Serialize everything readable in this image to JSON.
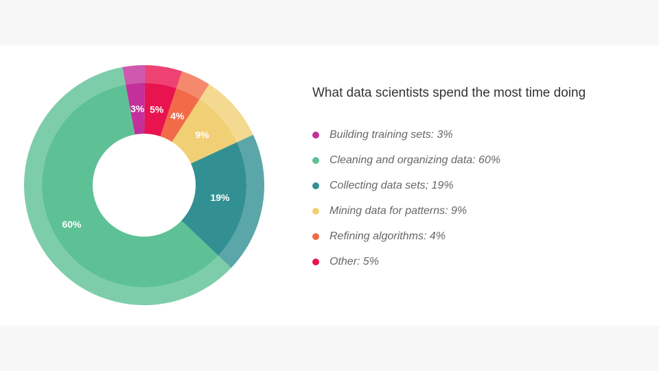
{
  "chart_data": {
    "type": "pie",
    "variant": "donut",
    "title": "What data scientists spend the most time doing",
    "slices": [
      {
        "label": "Building training sets: 3%",
        "value": 3,
        "value_label": "3%",
        "color": "#c3309b"
      },
      {
        "label": "Other: 5%",
        "value": 5,
        "value_label": "5%",
        "color": "#e8134f"
      },
      {
        "label": "Refining algorithms: 4%",
        "value": 4,
        "value_label": "4%",
        "color": "#f26b48"
      },
      {
        "label": "Mining data for patterns: 9%",
        "value": 9,
        "value_label": "9%",
        "color": "#f1d075"
      },
      {
        "label": "Collecting data sets; 19%",
        "value": 19,
        "value_label": "19%",
        "color": "#329092"
      },
      {
        "label": "Cleaning and organizing data: 60%",
        "value": 60,
        "value_label": "60%",
        "color": "#5ec195"
      }
    ],
    "legend": [
      {
        "label": "Building training sets: 3%",
        "color": "#c3309b"
      },
      {
        "label": "Cleaning and organizing data: 60%",
        "color": "#5ec195"
      },
      {
        "label": "Collecting data sets; 19%",
        "color": "#329092"
      },
      {
        "label": "Mining data for patterns: 9%",
        "color": "#f1d075"
      },
      {
        "label": "Refining algorithms: 4%",
        "color": "#f26b48"
      },
      {
        "label": "Other: 5%",
        "color": "#e8134f"
      }
    ],
    "legend_position": "right",
    "grid": false
  }
}
